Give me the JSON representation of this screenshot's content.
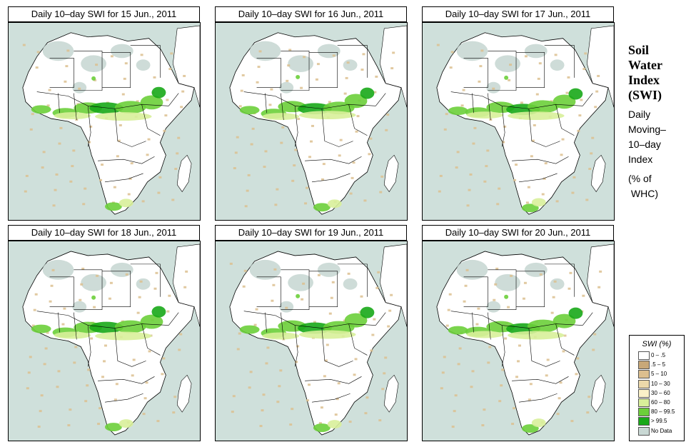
{
  "panels": [
    {
      "title": "Daily 10–day SWI for  15 Jun., 2011"
    },
    {
      "title": "Daily 10–day SWI for  16 Jun., 2011"
    },
    {
      "title": "Daily 10–day SWI for  17 Jun., 2011"
    },
    {
      "title": "Daily 10–day SWI for  18 Jun., 2011"
    },
    {
      "title": "Daily 10–day SWI for  19 Jun., 2011"
    },
    {
      "title": "Daily 10–day SWI for  20 Jun., 2011"
    }
  ],
  "side": {
    "title_lines": [
      "Soil",
      "Water",
      "Index",
      "(SWI)"
    ],
    "desc_lines": [
      "Daily",
      "Moving–",
      "10–day",
      "Index"
    ],
    "unit_lines": [
      "(% of",
      " WHC)"
    ]
  },
  "legend": {
    "title": "SWI (%)",
    "items": [
      {
        "label": "0 – .5",
        "color": "#ffffff"
      },
      {
        "label": ".5 – 5",
        "color": "#c8a878"
      },
      {
        "label": "5 – 10",
        "color": "#dcbf8f"
      },
      {
        "label": "10 – 30",
        "color": "#ecd9aa"
      },
      {
        "label": "30 – 60",
        "color": "#fbf1c8"
      },
      {
        "label": "60 – 80",
        "color": "#d8ef9a"
      },
      {
        "label": "80 – 99.5",
        "color": "#6ccf3a"
      },
      {
        "label": "> 99.5",
        "color": "#18a818"
      },
      {
        "label": "No Data",
        "color": "#c9d8d4"
      }
    ]
  },
  "map_colors": {
    "ocean": "#cfe0db",
    "land": "#ffffff",
    "nodata": "#c9d8d4",
    "dry": "#dcbf8f",
    "moist": "#d8ef9a",
    "wet": "#6ccf3a",
    "saturated": "#18a818",
    "border": "#000000"
  }
}
